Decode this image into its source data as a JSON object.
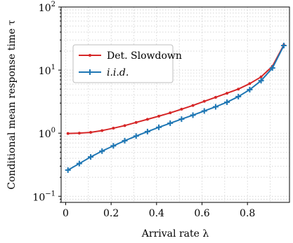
{
  "chart_data": {
    "type": "line",
    "xlabel": "Arrival rate λ",
    "ylabel": "Conditional mean response time τ",
    "yscale": "log",
    "xlim": [
      -0.02,
      0.985
    ],
    "ylim": [
      0.08,
      100
    ],
    "xticks": [
      0,
      0.2,
      0.4,
      0.6,
      0.8
    ],
    "xtick_labels": [
      "0",
      "0.2",
      "0.4",
      "0.6",
      "0.8"
    ],
    "yticks": [
      {
        "value": 0.1,
        "base": "10",
        "exp": "−1"
      },
      {
        "value": 1,
        "base": "10",
        "exp": "0"
      },
      {
        "value": 10,
        "base": "10",
        "exp": "1"
      },
      {
        "value": 100,
        "base": "10",
        "exp": "2"
      }
    ],
    "grid": true,
    "legend": {
      "placement": "upper-left"
    },
    "series": [
      {
        "name": "Det. Slowdown",
        "color": "#d62728",
        "marker": "dot",
        "x": [
          0.01,
          0.06,
          0.11,
          0.16,
          0.21,
          0.26,
          0.31,
          0.36,
          0.41,
          0.46,
          0.51,
          0.56,
          0.61,
          0.66,
          0.71,
          0.76,
          0.81,
          0.86,
          0.91,
          0.96
        ],
        "y": [
          0.99,
          1.0,
          1.03,
          1.1,
          1.2,
          1.32,
          1.48,
          1.66,
          1.86,
          2.1,
          2.4,
          2.75,
          3.2,
          3.7,
          4.3,
          5.0,
          6.1,
          7.8,
          11.5,
          25.0
        ]
      },
      {
        "name": "i.i.d.",
        "color": "#1f77b4",
        "marker": "plus",
        "x": [
          0.01,
          0.06,
          0.11,
          0.16,
          0.21,
          0.26,
          0.31,
          0.36,
          0.41,
          0.46,
          0.51,
          0.56,
          0.61,
          0.66,
          0.71,
          0.76,
          0.81,
          0.86,
          0.91,
          0.96
        ],
        "y": [
          0.26,
          0.33,
          0.42,
          0.52,
          0.63,
          0.76,
          0.9,
          1.06,
          1.24,
          1.44,
          1.67,
          1.93,
          2.25,
          2.62,
          3.1,
          3.8,
          4.9,
          6.8,
          10.8,
          24.5
        ]
      }
    ]
  }
}
